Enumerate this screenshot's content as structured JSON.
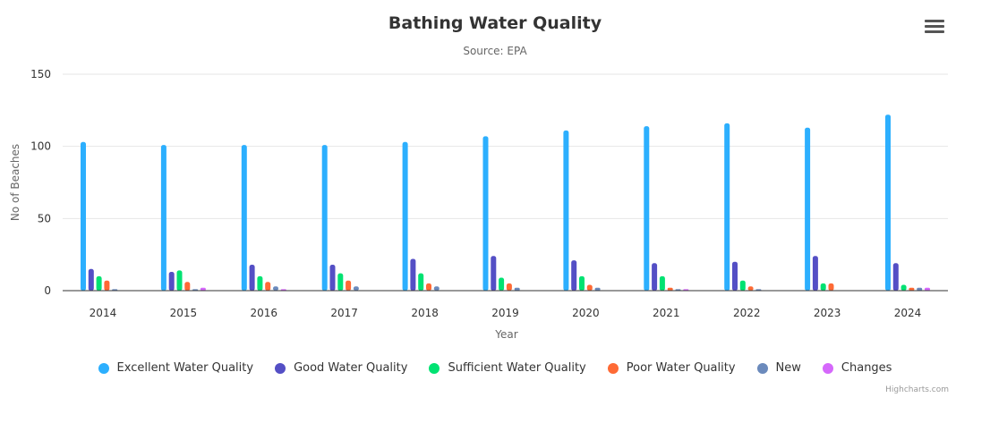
{
  "header": {
    "title": "Bathing Water Quality",
    "subtitle": "Source: EPA",
    "menu_icon": "hamburger-menu-icon"
  },
  "credits": "Highcharts.com",
  "chart_data": {
    "type": "bar",
    "title": "Bathing Water Quality",
    "subtitle": "Source: EPA",
    "xlabel": "Year",
    "ylabel": "No of Beaches",
    "ylim": [
      0,
      150
    ],
    "yticks": [
      0,
      50,
      100,
      150
    ],
    "grid": true,
    "legend_position": "bottom-center",
    "categories": [
      "2014",
      "2015",
      "2016",
      "2017",
      "2018",
      "2019",
      "2020",
      "2021",
      "2022",
      "2023",
      "2024"
    ],
    "series": [
      {
        "name": "Excellent Water Quality",
        "color": "#2caffe",
        "values": [
          103,
          101,
          101,
          101,
          103,
          107,
          111,
          114,
          116,
          113,
          122
        ]
      },
      {
        "name": "Good Water Quality",
        "color": "#544fc5",
        "values": [
          15,
          13,
          18,
          18,
          22,
          24,
          21,
          19,
          20,
          24,
          19
        ]
      },
      {
        "name": "Sufficient Water Quality",
        "color": "#00e272",
        "values": [
          10,
          14,
          10,
          12,
          12,
          9,
          10,
          10,
          7,
          5,
          4
        ]
      },
      {
        "name": "Poor Water Quality",
        "color": "#fe6a35",
        "values": [
          7,
          6,
          6,
          7,
          5,
          5,
          4,
          2,
          3,
          5,
          2
        ]
      },
      {
        "name": "New",
        "color": "#6b8abc",
        "values": [
          1,
          1,
          3,
          3,
          3,
          2,
          2,
          1,
          1,
          0,
          2
        ]
      },
      {
        "name": "Changes",
        "color": "#d568fb",
        "values": [
          0,
          2,
          1,
          0,
          0,
          0,
          0,
          1,
          0,
          0,
          2
        ]
      }
    ]
  }
}
